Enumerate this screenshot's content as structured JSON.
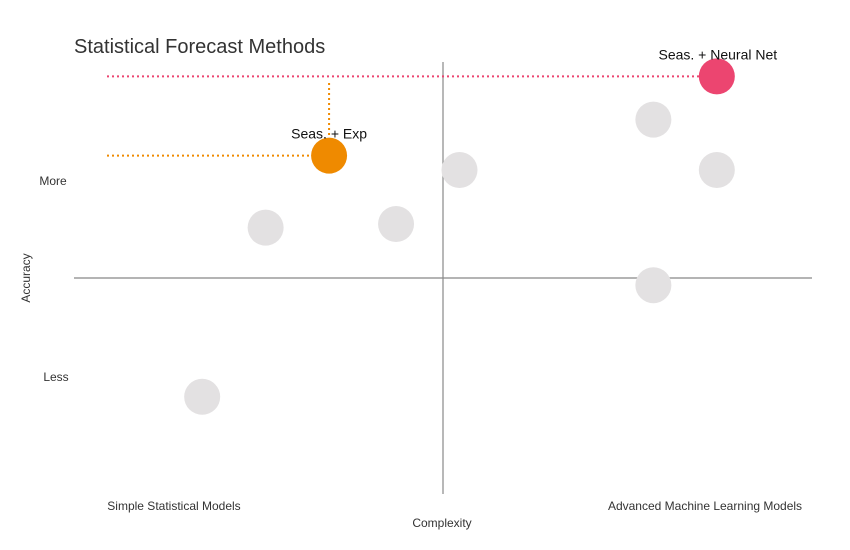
{
  "chart_data": {
    "type": "scatter",
    "title": "Statistical Forecast Methods",
    "xlabel": "Complexity",
    "ylabel": "Accuracy",
    "x_tick_labels": {
      "low": "Simple Statistical Models",
      "high": "Advanced Machine Learning Models"
    },
    "y_tick_labels": {
      "high": "More",
      "low": "Less"
    },
    "xlim": [
      0,
      10
    ],
    "ylim": [
      -3,
      3
    ],
    "grid": false,
    "colors": {
      "background_point": "#e3e1e2",
      "exp_point": "#ef8a00",
      "nn_point": "#ec4570",
      "axis": "#888888"
    },
    "points": [
      {
        "x": 1.35,
        "y": -1.65,
        "label": ""
      },
      {
        "x": 2.25,
        "y": 0.7,
        "label": ""
      },
      {
        "x": 4.1,
        "y": 0.75,
        "label": ""
      },
      {
        "x": 5.0,
        "y": 1.5,
        "label": ""
      },
      {
        "x": 7.75,
        "y": 2.2,
        "label": ""
      },
      {
        "x": 7.75,
        "y": -0.1,
        "label": ""
      },
      {
        "x": 8.65,
        "y": 1.5,
        "label": ""
      },
      {
        "x": 3.15,
        "y": 1.7,
        "label": "Seas. + Exp",
        "highlight": "exp"
      },
      {
        "x": 8.65,
        "y": 2.8,
        "label": "Seas. + Neural Net",
        "highlight": "nn"
      }
    ]
  }
}
